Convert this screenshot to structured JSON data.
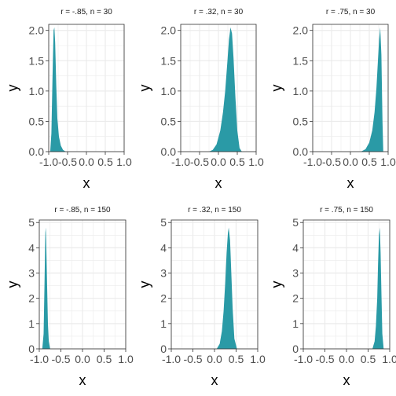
{
  "chart_data": [
    {
      "type": "area",
      "title": "r = -.85, n = 30",
      "xlabel": "x",
      "ylabel": "y",
      "xlim": [
        -1.0,
        1.0
      ],
      "ylim": [
        0,
        2.1
      ],
      "xticks": [
        "-1.0",
        "-0.5",
        "0.0",
        "0.5",
        "1.0"
      ],
      "yticks": [
        "0.0",
        "0.5",
        "1.0",
        "1.5",
        "2.0"
      ],
      "ytick_values": [
        0,
        0.5,
        1.0,
        1.5,
        2.0
      ],
      "x": [
        -0.96,
        -0.93,
        -0.9,
        -0.87,
        -0.85,
        -0.83,
        -0.8,
        -0.77,
        -0.73,
        -0.68,
        -0.62,
        -0.55
      ],
      "y": [
        0,
        0.3,
        1.2,
        2.0,
        2.05,
        1.8,
        1.1,
        0.55,
        0.25,
        0.1,
        0.03,
        0
      ]
    },
    {
      "type": "area",
      "title": "r = .32, n = 30",
      "xlabel": "x",
      "ylabel": "y",
      "xlim": [
        -1.0,
        1.0
      ],
      "ylim": [
        0,
        2.1
      ],
      "xticks": [
        "-1.0",
        "-0.5",
        "0.0",
        "0.5",
        "1.0"
      ],
      "yticks": [
        "0.0",
        "0.5",
        "1.0",
        "1.5",
        "2.0"
      ],
      "ytick_values": [
        0,
        0.5,
        1.0,
        1.5,
        2.0
      ],
      "x": [
        -0.25,
        -0.15,
        -0.05,
        0.05,
        0.12,
        0.18,
        0.24,
        0.28,
        0.32,
        0.36,
        0.4,
        0.45,
        0.5,
        0.56,
        0.62
      ],
      "y": [
        0,
        0.03,
        0.12,
        0.35,
        0.65,
        1.0,
        1.5,
        1.85,
        2.05,
        1.95,
        1.55,
        0.9,
        0.35,
        0.06,
        0
      ]
    },
    {
      "type": "area",
      "title": "r = .75, n = 30",
      "xlabel": "x",
      "ylabel": "y",
      "xlim": [
        -1.0,
        1.0
      ],
      "ylim": [
        0,
        2.1
      ],
      "xticks": [
        "-1.0",
        "-0.5",
        "0.0",
        "0.5",
        "1.0"
      ],
      "yticks": [
        "0.0",
        "0.5",
        "1.0",
        "1.5",
        "2.0"
      ],
      "ytick_values": [
        0,
        0.5,
        1.0,
        1.5,
        2.0
      ],
      "x": [
        0.28,
        0.4,
        0.5,
        0.58,
        0.64,
        0.69,
        0.73,
        0.76,
        0.79,
        0.82,
        0.85,
        0.87
      ],
      "y": [
        0,
        0.04,
        0.15,
        0.35,
        0.65,
        1.05,
        1.5,
        1.85,
        2.05,
        1.6,
        0.5,
        0
      ]
    },
    {
      "type": "area",
      "title": "r = -.85, n = 150",
      "xlabel": "x",
      "ylabel": "y",
      "xlim": [
        -1.0,
        1.0
      ],
      "ylim": [
        0,
        5.1
      ],
      "xticks": [
        "-1.0",
        "-0.5",
        "0.0",
        "0.5",
        "1.0"
      ],
      "yticks": [
        "0",
        "1",
        "2",
        "3",
        "4",
        "5"
      ],
      "ytick_values": [
        0,
        1,
        2,
        3,
        4,
        5
      ],
      "x": [
        -0.93,
        -0.9,
        -0.88,
        -0.86,
        -0.85,
        -0.84,
        -0.82,
        -0.8,
        -0.78,
        -0.75
      ],
      "y": [
        0,
        0.6,
        2.5,
        4.6,
        4.8,
        4.3,
        2.6,
        1.0,
        0.3,
        0
      ]
    },
    {
      "type": "area",
      "title": "r = .32, n = 150",
      "xlabel": "x",
      "ylabel": "y",
      "xlim": [
        -1.0,
        1.0
      ],
      "ylim": [
        0,
        5.1
      ],
      "xticks": [
        "-1.0",
        "-0.5",
        "0.0",
        "0.5",
        "1.0"
      ],
      "yticks": [
        "0",
        "1",
        "2",
        "3",
        "4",
        "5"
      ],
      "ytick_values": [
        0,
        1,
        2,
        3,
        4,
        5
      ],
      "x": [
        0.05,
        0.12,
        0.17,
        0.21,
        0.25,
        0.28,
        0.31,
        0.33,
        0.36,
        0.39,
        0.42,
        0.46,
        0.52
      ],
      "y": [
        0,
        0.2,
        0.7,
        1.5,
        2.7,
        3.8,
        4.6,
        4.8,
        4.3,
        3.0,
        1.6,
        0.4,
        0
      ]
    },
    {
      "type": "area",
      "title": "r = .75, n = 150",
      "xlabel": "x",
      "ylabel": "y",
      "xlim": [
        -1.0,
        1.0
      ],
      "ylim": [
        0,
        5.1
      ],
      "xticks": [
        "-1.0",
        "-0.5",
        "0.0",
        "0.5",
        "1.0"
      ],
      "yticks": [
        "0",
        "1",
        "2",
        "3",
        "4",
        "5"
      ],
      "ytick_values": [
        0,
        1,
        2,
        3,
        4,
        5
      ],
      "x": [
        0.6,
        0.65,
        0.68,
        0.71,
        0.73,
        0.75,
        0.77,
        0.79,
        0.81,
        0.83,
        0.86
      ],
      "y": [
        0,
        0.3,
        0.9,
        2.0,
        3.3,
        4.5,
        4.8,
        3.8,
        2.0,
        0.6,
        0
      ]
    }
  ],
  "colors": {
    "fill": "#2a9aa6",
    "grid": "#ebebeb",
    "panel_border": "#333333",
    "background": "#ffffff"
  }
}
